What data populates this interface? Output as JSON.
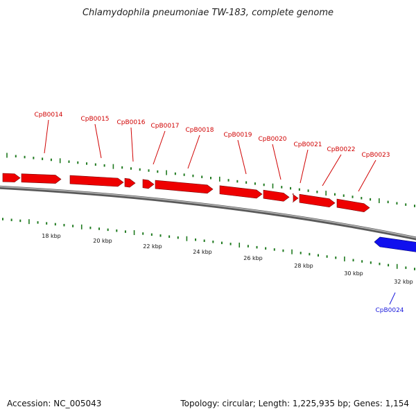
{
  "title": "Chlamydophila pneumoniae TW-183, complete genome",
  "footer": {
    "accession": "Accession: NC_005043",
    "summary": "Topology: circular; Length: 1,225,935 bp; Genes: 1,154"
  },
  "colors": {
    "forward_gene": "#ee0000",
    "reverse_gene": "#1010ee",
    "tick": "#1f7a1f",
    "backbone": "#888888"
  },
  "kbp_labels": [
    "18 kbp",
    "20 kbp",
    "22 kbp",
    "24 kbp",
    "26 kbp",
    "28 kbp",
    "30 kbp",
    "32 kbp"
  ],
  "forward_gene_labels": [
    "CpB0014",
    "CpB0015",
    "CpB0016",
    "CpB0017",
    "CpB0018",
    "CpB0019",
    "CpB0020",
    "CpB0021",
    "CpB0022",
    "CpB0023"
  ],
  "reverse_gene_labels": [
    "CpB0024"
  ]
}
